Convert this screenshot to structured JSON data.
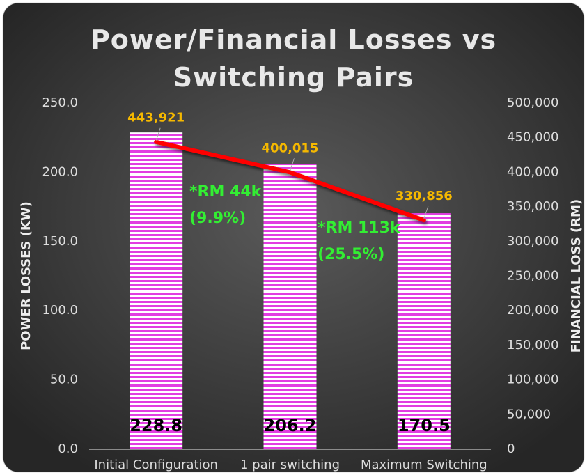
{
  "chart_data": {
    "type": "bar",
    "title": "Power/Financial Losses vs Switching Pairs",
    "categories": [
      "Initial Configuration",
      "1 pair switching",
      "Maximum Switching"
    ],
    "series": [
      {
        "type": "bar",
        "color": "#e23de2",
        "values": [
          228.8,
          206.2,
          170.5
        ]
      },
      {
        "type": "line",
        "axis": "y2",
        "color": "#ff0000",
        "values": [
          443921,
          400015,
          330856
        ],
        "value_labels": [
          "443,921",
          "400,015",
          "330,856"
        ]
      }
    ],
    "ylabel": "POWER LOSSES (KW)",
    "y2label": "FINANCIAL LOSS (RM)",
    "ylim": [
      0,
      250
    ],
    "yticks": [
      {
        "value": 0,
        "label": "0.0"
      },
      {
        "value": 50,
        "label": "50.0"
      },
      {
        "value": 100,
        "label": "100.0"
      },
      {
        "value": 150,
        "label": "150.0"
      },
      {
        "value": 200,
        "label": "200.0"
      },
      {
        "value": 250,
        "label": "250.0"
      }
    ],
    "y2lim": [
      0,
      500000
    ],
    "y2ticks": [
      0,
      {
        "value": 50000,
        "label": "50,000"
      },
      {
        "value": 100000,
        "label": "100,000"
      },
      {
        "value": 150000,
        "label": "150,000"
      },
      {
        "value": 200000,
        "label": "200,000"
      },
      {
        "value": 250000,
        "label": "250,000"
      },
      {
        "value": 300000,
        "label": "300,000"
      },
      {
        "value": 350000,
        "label": "350,000"
      },
      {
        "value": 400000,
        "label": "400,000"
      },
      {
        "value": 450000,
        "label": "450,000"
      },
      {
        "value": 500000,
        "label": "500,000"
      }
    ],
    "annotations": [
      {
        "lines": [
          "*RM 44k",
          "(9.9%)"
        ]
      },
      {
        "lines": [
          "*RM 113k",
          "(25.5%)"
        ]
      }
    ]
  }
}
